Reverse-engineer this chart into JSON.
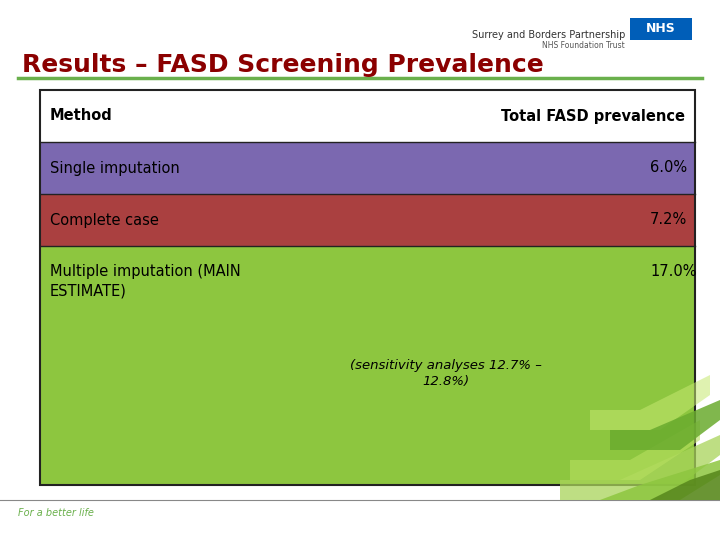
{
  "title": "Results – FASD Screening Prevalence",
  "title_color": "#8B0000",
  "title_fontsize": 18,
  "bg_color": "#ffffff",
  "green_line_color": "#6ab04c",
  "header_row": {
    "label": "Method",
    "value_label": "Total FASD prevalence"
  },
  "rows": [
    {
      "method": "Single imputation",
      "value": "6.0%",
      "bg": "#7b68b0"
    },
    {
      "method": "Complete case",
      "value": "7.2%",
      "bg": "#aa4040"
    },
    {
      "method": "Multiple imputation (MAIN\nESTIMATE)",
      "value": "17.0%",
      "value2": "(sensitivity analyses 12.7% –\n12.8%)",
      "bg": "#8dc63f"
    }
  ],
  "footer_text": "For a better life",
  "footer_color": "#6ab04c",
  "nhs_partnership": "Surrey and Borders Partnership",
  "nhs_foundation": "NHS Foundation Trust",
  "nhs_blue": "#005EB8",
  "border_color": "#222222"
}
